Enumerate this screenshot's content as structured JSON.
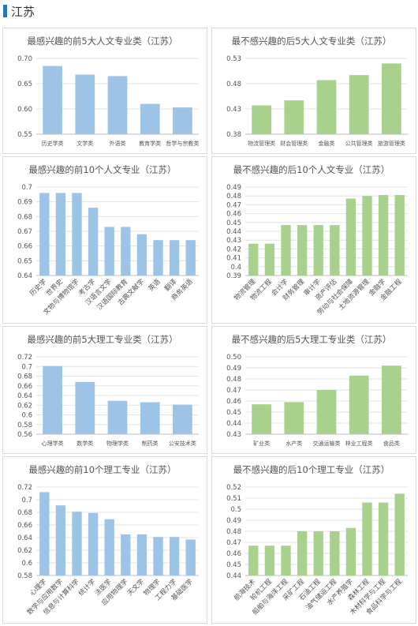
{
  "header": {
    "title": "江苏"
  },
  "chart_data": [
    {
      "type": "bar",
      "title": "最感兴趣的前5大人文专业类（江苏）",
      "color": "#9dc3e6",
      "categories": [
        "历史学类",
        "文学类",
        "外语类",
        "教育学类",
        "哲学与宗教类"
      ],
      "values": [
        0.685,
        0.668,
        0.665,
        0.61,
        0.603
      ],
      "ylim": [
        0.55,
        0.7
      ],
      "yticks": [
        0.55,
        {
          "value": 0.6,
          "label": "0.60"
        },
        0.65,
        {
          "value": 0.7,
          "label": "0.70"
        }
      ],
      "grid": true
    },
    {
      "type": "bar",
      "title": "最不感兴趣的后5大人文专业类（江苏）",
      "color": "#a9d18e",
      "categories": [
        "物流管理类",
        "财会管理类",
        "金融类",
        "公共管理类",
        "旅游管理类"
      ],
      "values": [
        0.437,
        0.447,
        0.487,
        0.497,
        0.52
      ],
      "ylim": [
        0.38,
        0.53
      ],
      "yticks": [
        0.38,
        0.43,
        0.48,
        0.53
      ],
      "grid": true
    },
    {
      "type": "bar",
      "title": "最感兴趣的前10个人文专业（江苏）",
      "color": "#9dc3e6",
      "categories": [
        "历史学",
        "世界史",
        "文物与博物馆学",
        "考古学",
        "汉语言文学",
        "汉语国际教育",
        "古典文献学",
        "英语",
        "翻译",
        "商务英语"
      ],
      "values": [
        0.696,
        0.696,
        0.696,
        0.686,
        0.673,
        0.673,
        0.668,
        0.664,
        0.664,
        0.664
      ],
      "ylim": [
        0.64,
        0.7
      ],
      "yticks": [
        0.64,
        0.65,
        0.66,
        0.67,
        0.68,
        0.69,
        0.7
      ],
      "grid": true
    },
    {
      "type": "bar",
      "title": "最不感兴趣的后10个人文专业（江苏）",
      "color": "#a9d18e",
      "categories": [
        "物流管理",
        "物流工程",
        "会计学",
        "财务管理",
        "审计学",
        "资产评估",
        "劳动与社会保障",
        "土地资源管理",
        "金融学",
        "金融工程"
      ],
      "values": [
        0.426,
        0.426,
        0.447,
        0.447,
        0.447,
        0.447,
        0.477,
        0.48,
        0.481,
        0.481
      ],
      "ylim": [
        0.39,
        0.49
      ],
      "yticks": [
        0.39,
        0.4,
        0.41,
        0.42,
        0.43,
        0.44,
        0.45,
        0.46,
        0.47,
        0.48,
        0.49
      ],
      "grid": true
    },
    {
      "type": "bar",
      "title": "最感兴趣的前5大理工专业类（江苏）",
      "color": "#9dc3e6",
      "categories": [
        "心理学类",
        "数学类",
        "物理学类",
        "制药类",
        "公安技术类"
      ],
      "values": [
        0.701,
        0.668,
        0.629,
        0.626,
        0.621
      ],
      "ylim": [
        0.56,
        0.72
      ],
      "yticks": [
        0.56,
        0.58,
        0.6,
        0.62,
        0.64,
        0.66,
        0.68,
        0.7,
        0.72
      ],
      "grid": true
    },
    {
      "type": "bar",
      "title": "最不感兴趣的后5大理工专业类（江苏）",
      "color": "#a9d18e",
      "categories": [
        "矿业类",
        "水产类",
        "交通运输类",
        "林业工程类",
        "食品类"
      ],
      "values": [
        0.457,
        0.459,
        0.47,
        0.483,
        0.492
      ],
      "ylim": [
        0.43,
        0.5
      ],
      "yticks": [
        0.43,
        0.44,
        0.45,
        0.46,
        0.47,
        0.48,
        0.49,
        {
          "value": 0.5,
          "label": "0.50"
        }
      ],
      "grid": true
    },
    {
      "type": "bar",
      "title": "最感兴趣的前10个理工专业（江苏）",
      "color": "#9dc3e6",
      "categories": [
        "心理学",
        "数学与应用数学",
        "信息与计算科学",
        "统计学",
        "法医学",
        "应用物理学",
        "天文学",
        "物理学",
        "工程力学",
        "基础医学"
      ],
      "values": [
        0.712,
        0.691,
        0.681,
        0.679,
        0.669,
        0.645,
        0.645,
        0.641,
        0.641,
        0.637
      ],
      "ylim": [
        0.58,
        0.72
      ],
      "yticks": [
        0.58,
        0.6,
        0.62,
        0.64,
        0.66,
        0.68,
        0.7,
        0.72
      ],
      "grid": true
    },
    {
      "type": "bar",
      "title": "最不感兴趣的后10个理工专业（江苏）",
      "color": "#a9d18e",
      "categories": [
        "航海技术",
        "轮机工程",
        "船舶与海洋工程",
        "采矿工程",
        "石油工程",
        "油气储运工程",
        "水产养殖学",
        "森林工程",
        "木材科学与工程",
        "食品科学与工程"
      ],
      "values": [
        0.467,
        0.467,
        0.467,
        0.48,
        0.48,
        0.48,
        0.483,
        0.506,
        0.506,
        0.514
      ],
      "ylim": [
        0.44,
        0.52
      ],
      "yticks": [
        0.44,
        0.45,
        0.46,
        0.47,
        0.48,
        0.49,
        0.5,
        0.51,
        0.52
      ],
      "grid": true
    }
  ]
}
